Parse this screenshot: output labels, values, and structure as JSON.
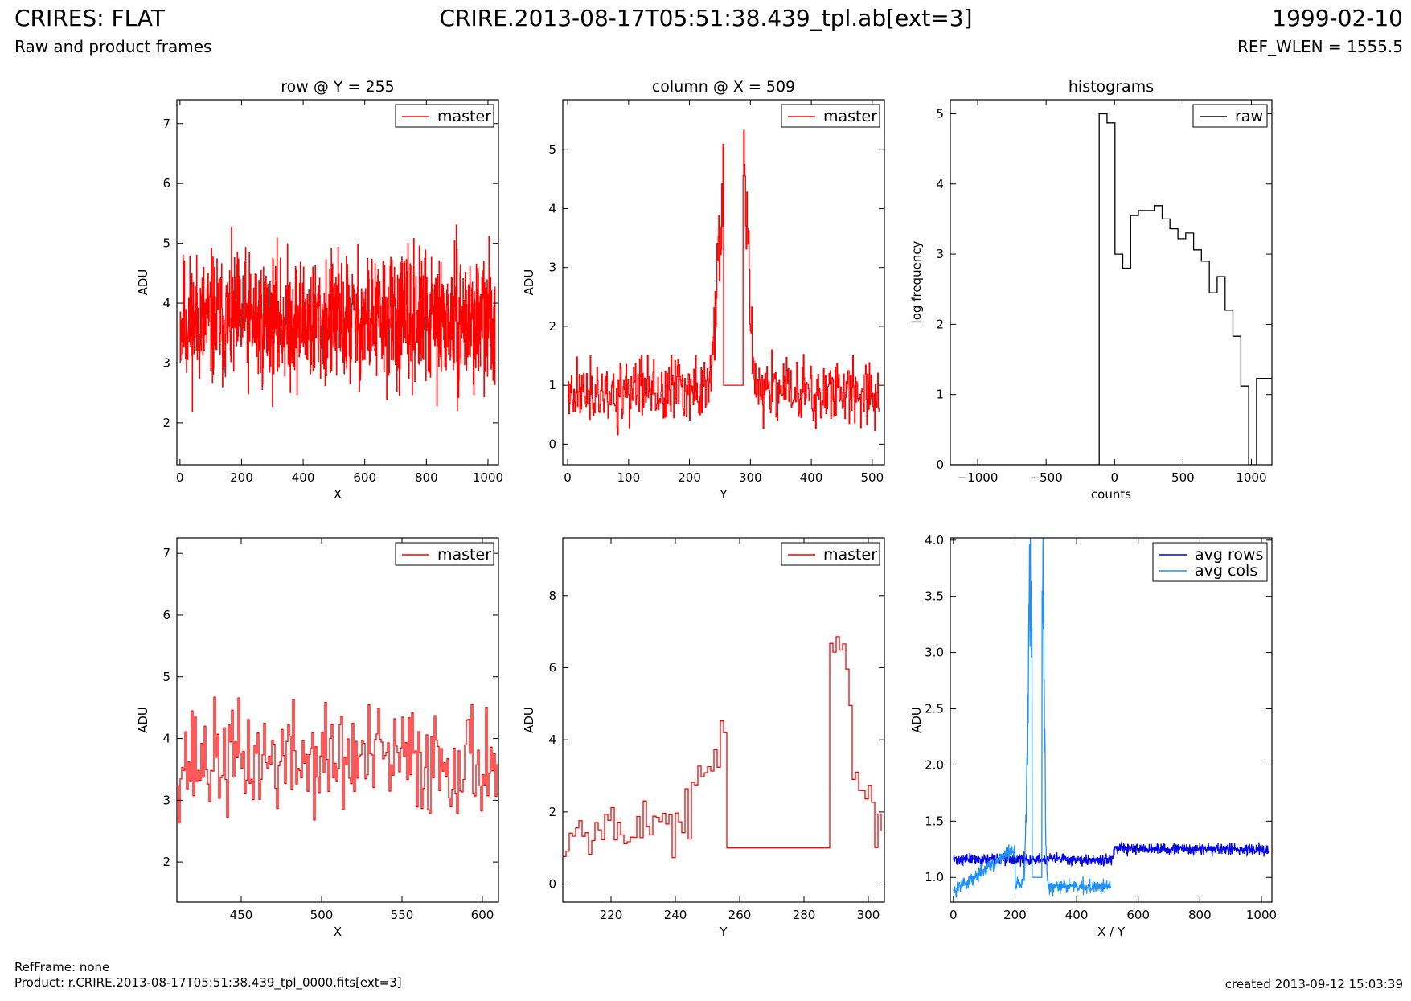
{
  "header": {
    "title_left": "CRIRES: FLAT",
    "subtitle_left": "Raw and product frames",
    "title_center": "CRIRE.2013-08-17T05:51:38.439_tpl.ab[ext=3]",
    "title_right": "1999-02-10",
    "subtitle_right": "REF_WLEN = 1555.5"
  },
  "footer": {
    "refframe": "RefFrame: none",
    "product": "Product: r.CRIRE.2013-08-17T05:51:38.439_tpl_0000.fits[ext=3]",
    "created": "created 2013-09-12 15:03:39"
  },
  "chart_data": [
    {
      "id": "row-full",
      "type": "line",
      "title": "row @ Y = 255",
      "xlabel": "X",
      "ylabel": "ADU",
      "xlim": [
        -10,
        1034
      ],
      "ylim": [
        1.3,
        7.4
      ],
      "xticks": [
        0,
        200,
        400,
        600,
        800,
        1000
      ],
      "yticks": [
        2,
        3,
        4,
        5,
        6,
        7
      ],
      "steps": true,
      "legend": "top-right",
      "series": [
        {
          "name": "master",
          "color": "#ff0000",
          "noise": {
            "n": 1024,
            "x0": 0,
            "dx": 1,
            "mean": 3.7,
            "amp": 1.1,
            "seed": 11,
            "lo": 1.6,
            "hi": 6.1
          }
        }
      ]
    },
    {
      "id": "column-full",
      "type": "line",
      "title": "column @ X = 509",
      "xlabel": "Y",
      "ylabel": "ADU",
      "xlim": [
        -8,
        520
      ],
      "ylim": [
        -0.35,
        5.85
      ],
      "xticks": [
        0,
        100,
        200,
        300,
        400,
        500
      ],
      "yticks": [
        0,
        1,
        2,
        3,
        4,
        5
      ],
      "steps": true,
      "legend": "top-right",
      "series": [
        {
          "name": "master",
          "color": "#ff0000",
          "noise": {
            "n": 512,
            "x0": 0,
            "dx": 1,
            "mean": 0.9,
            "amp": 0.55,
            "seed": 23,
            "lo": 0.1,
            "hi": 5.8
          },
          "bumps": [
            {
              "center": 255,
              "width": 14,
              "height": 3.3
            },
            {
              "center": 290,
              "width": 10,
              "height": 3.5
            }
          ],
          "flat": {
            "from": 256,
            "to": 287,
            "value": 1.0
          }
        }
      ]
    },
    {
      "id": "histograms",
      "type": "line",
      "title": "histograms",
      "xlabel": "counts",
      "ylabel": "log frequency",
      "xlim": [
        -1200,
        1150
      ],
      "ylim": [
        0,
        5.2
      ],
      "xticks": [
        -1000,
        -500,
        0,
        500,
        1000
      ],
      "yticks": [
        0,
        1,
        2,
        3,
        4,
        5
      ],
      "steps": true,
      "legend": "top-right",
      "series": [
        {
          "name": "raw",
          "color": "#000000",
          "x": [
            -1200,
            -112,
            -112,
            -55,
            -55,
            3,
            3,
            60,
            60,
            118,
            118,
            175,
            175,
            233,
            233,
            290,
            290,
            348,
            348,
            405,
            405,
            463,
            463,
            520,
            520,
            578,
            578,
            635,
            635,
            693,
            693,
            750,
            750,
            808,
            808,
            865,
            865,
            923,
            923,
            980,
            980,
            1038,
            1038,
            1095,
            1095,
            1150
          ],
          "y": [
            0,
            0,
            5.0,
            5.0,
            4.87,
            4.87,
            3.0,
            3.0,
            2.8,
            2.8,
            3.55,
            3.55,
            3.62,
            3.62,
            3.62,
            3.62,
            3.69,
            3.69,
            3.5,
            3.5,
            3.36,
            3.36,
            3.22,
            3.22,
            3.3,
            3.3,
            3.06,
            3.06,
            2.9,
            2.9,
            2.45,
            2.45,
            2.68,
            2.68,
            2.2,
            2.2,
            1.83,
            1.83,
            1.12,
            1.12,
            0,
            0,
            1.23,
            1.23,
            1.23,
            1.23
          ]
        }
      ]
    },
    {
      "id": "row-zoom",
      "type": "line",
      "title": "",
      "xlabel": "X",
      "ylabel": "ADU",
      "xlim": [
        410,
        610
      ],
      "ylim": [
        1.35,
        7.25
      ],
      "xticks": [
        450,
        500,
        550,
        600
      ],
      "yticks": [
        2,
        3,
        4,
        5,
        6,
        7
      ],
      "steps": true,
      "legend": "top-right",
      "series": [
        {
          "name": "master",
          "color": "#ff0000",
          "noise": {
            "n": 200,
            "x0": 410,
            "dx": 1,
            "mean": 3.65,
            "amp": 0.9,
            "seed": 37,
            "lo": 1.8,
            "hi": 6.0
          }
        }
      ]
    },
    {
      "id": "column-zoom",
      "type": "line",
      "title": "",
      "xlabel": "Y",
      "ylabel": "ADU",
      "xlim": [
        205,
        305
      ],
      "ylim": [
        -0.5,
        9.6
      ],
      "xticks": [
        220,
        240,
        260,
        280,
        300
      ],
      "yticks": [
        0,
        2,
        4,
        6,
        8
      ],
      "steps": true,
      "legend": "top-right",
      "series": [
        {
          "name": "master",
          "color": "#ff0000",
          "noise": {
            "n": 100,
            "x0": 205,
            "dx": 1,
            "mean": 1.6,
            "amp": 0.8,
            "seed": 53,
            "lo": 0.2,
            "hi": 8.8
          },
          "bumps": [
            {
              "center": 255,
              "width": 8,
              "height": 2.6
            },
            {
              "center": 288,
              "width": 8,
              "height": 5.2
            }
          ],
          "flat": {
            "from": 256,
            "to": 287,
            "value": 1.0
          }
        }
      ]
    },
    {
      "id": "averages",
      "type": "line",
      "title": "",
      "xlabel": "X / Y",
      "ylabel": "ADU",
      "xlim": [
        -10,
        1034
      ],
      "ylim": [
        0.78,
        4.02
      ],
      "xticks": [
        0,
        200,
        400,
        600,
        800,
        1000
      ],
      "yticks": [
        1.0,
        1.5,
        2.0,
        2.5,
        3.0,
        3.5,
        4.0
      ],
      "steps": false,
      "legend": "top-right",
      "series": [
        {
          "name": "avg rows",
          "color": "#0000ee",
          "noise": {
            "n": 1024,
            "x0": 0,
            "dx": 1,
            "mean": 1.16,
            "amp": 0.05,
            "seed": 71,
            "lo": 1.0,
            "hi": 1.4
          },
          "step_from": 520,
          "step_value": 1.25
        },
        {
          "name": "avg cols",
          "color": "#1e90ff",
          "noise": {
            "n": 512,
            "x0": 0,
            "dx": 1,
            "mean": 0.92,
            "amp": 0.07,
            "seed": 83,
            "lo": 0.82,
            "hi": 4.02
          },
          "ramp": {
            "from": 0,
            "to": 200,
            "start": 0.88,
            "end": 1.25
          },
          "bumps": [
            {
              "center": 250,
              "width": 12,
              "height": 2.6
            },
            {
              "center": 290,
              "width": 8,
              "height": 2.8
            }
          ],
          "flat": {
            "from": 256,
            "to": 287,
            "value": 1.0
          }
        }
      ]
    }
  ]
}
